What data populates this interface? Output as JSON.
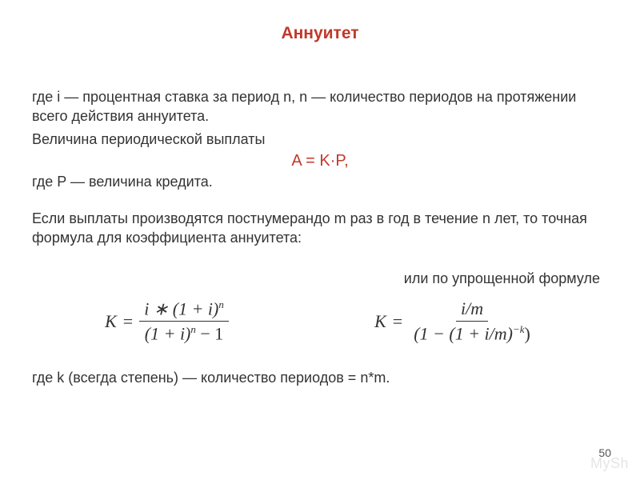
{
  "title_color": "#c0392b",
  "formula_color": "#c0392b",
  "text_color": "#333333",
  "title": "Аннуитет",
  "p1": "где i — процентная ставка за период n, n — количество периодов на протяжении всего действия аннуитета.",
  "p2": "Величина периодической выплаты",
  "formula_main": "A = K·P,",
  "p3": "где P — величина кредита.",
  "p4": "Если выплаты производятся постнумерандо m раз в год в течение n лет, то точная формула для коэффициента аннуитета:",
  "right_note": "или по упрощенной формуле",
  "f1": {
    "lhs": "K",
    "num_a": "i ∗ (1 + i)",
    "num_exp": "n",
    "den_a": "(1 + i)",
    "den_exp": "n",
    "den_b": " − 1"
  },
  "f2": {
    "lhs": "K",
    "num": "i/m",
    "den_a": "(1 − (1 + i/m)",
    "den_exp": "−k",
    "den_b": ")"
  },
  "p5": "где k (всегда степень) — количество периодов = n*m.",
  "page_number": "50",
  "watermark": "MySh"
}
